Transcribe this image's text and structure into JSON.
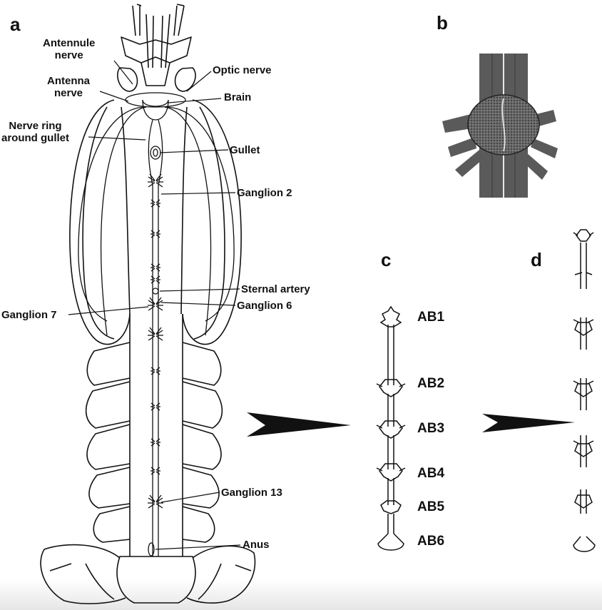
{
  "panels": {
    "a": "a",
    "b": "b",
    "c": "c",
    "d": "d"
  },
  "labels": {
    "antennule_nerve": "Antennule\nnerve",
    "antenna_nerve": "Antenna\nnerve",
    "optic_nerve": "Optic nerve",
    "brain": "Brain",
    "nerve_ring": "Nerve ring\naround gullet",
    "gullet": "Gullet",
    "ganglion_2": "Ganglion 2",
    "sternal_artery": "Sternal artery",
    "ganglion_6": "Ganglion 6",
    "ganglion_7": "Ganglion 7",
    "ganglion_13": "Ganglion 13",
    "anus": "Anus"
  },
  "segments": [
    "AB1",
    "AB2",
    "AB3",
    "AB4",
    "AB5",
    "AB6"
  ],
  "colors": {
    "ink": "#111111",
    "tissue": "#555555",
    "brain_fill": "#4a4a4a"
  }
}
